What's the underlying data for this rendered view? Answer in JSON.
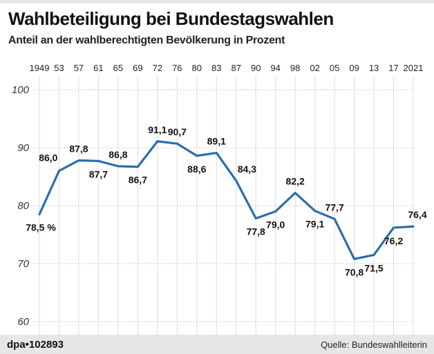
{
  "title": "Wahlbeteiligung bei Bundestagswahlen",
  "subtitle": "Anteil an der wahlberechtigten Bevölkerung in Prozent",
  "credit": "dpa•102893",
  "source": "Quelle: Bundeswahlleiterin",
  "colors": {
    "line": "#2a6dad",
    "grid": "#dddddd",
    "footer": "#e6e6e6"
  },
  "chart_data": {
    "type": "line",
    "title": "Wahlbeteiligung bei Bundestagswahlen",
    "subtitle": "Anteil an der wahlberechtigten Bevölkerung in Prozent",
    "categories": [
      "1949",
      "53",
      "57",
      "61",
      "65",
      "69",
      "72",
      "76",
      "80",
      "83",
      "87",
      "90",
      "94",
      "98",
      "02",
      "05",
      "09",
      "13",
      "17",
      "2021"
    ],
    "values": [
      78.5,
      86.0,
      87.8,
      87.7,
      86.8,
      86.7,
      91.1,
      90.7,
      88.6,
      89.1,
      84.3,
      77.8,
      79.0,
      82.2,
      79.1,
      77.7,
      70.8,
      71.5,
      76.2,
      76.4
    ],
    "labels": [
      "78,5 %",
      "86,0",
      "87,8",
      "87,7",
      "86,8",
      "86,7",
      "91,1",
      "90,7",
      "88,6",
      "89,1",
      "84,3",
      "77,8",
      "79,0",
      "82,2",
      "79,1",
      "77,7",
      "70,8",
      "71,5",
      "76,2",
      "76,4"
    ],
    "label_pos": [
      "below",
      "above-left",
      "above",
      "below",
      "above",
      "below",
      "above",
      "above",
      "below",
      "above",
      "above-right",
      "below",
      "below",
      "above",
      "below",
      "above",
      "below",
      "below",
      "below",
      "above"
    ],
    "ylim": [
      60,
      100
    ],
    "yticks": [
      "100",
      "90",
      "80",
      "70",
      "60"
    ],
    "xaxis_position": "top",
    "grid": true
  }
}
